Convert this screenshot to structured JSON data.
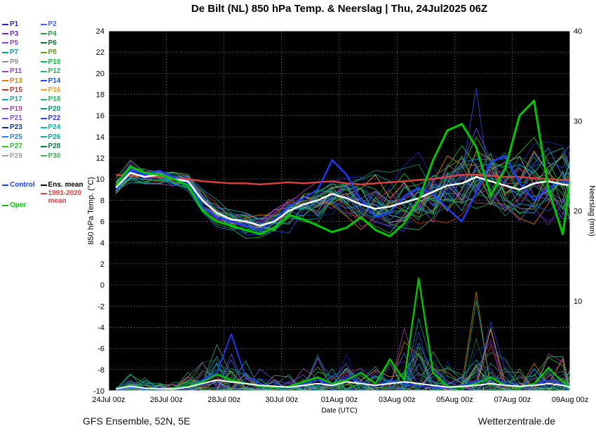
{
  "header": {
    "title": "De Bilt  (NL)  850 hPa Temp. & Neerslag | Thu, 24Jul2025 06Z"
  },
  "footer": {
    "left": "GFS Ensemble, 52N, 5E",
    "right": "Wetterzentrale.de"
  },
  "legend": {
    "control_label": "Control",
    "ens_mean_label": "Ens. mean",
    "climate_label": "1991-2020 mean",
    "oper_label": "Oper"
  },
  "chart_data": {
    "type": "line",
    "title": "De Bilt  (NL)  850 hPa Temp. & Neerslag | Thu, 24Jul2025 06Z",
    "xlabel": "Date (UTC)",
    "ylabel_left": "850 hPa Temp. (°C)",
    "ylabel_right": "Neerslag (mm)",
    "ylim_left": [
      -10,
      24
    ],
    "ytick_step_left": 2,
    "ylim_right": [
      0,
      40
    ],
    "yticks_right": [
      10,
      20,
      30,
      40
    ],
    "x_total_hours": 384,
    "xtick_hours": [
      0,
      48,
      96,
      144,
      192,
      240,
      288,
      336,
      384
    ],
    "xtick_labels": [
      "24Jul 00z",
      "26Jul 00z",
      "28Jul 00z",
      "30Jul 00z",
      "01Aug 00z",
      "03Aug 00z",
      "05Aug 00z",
      "07Aug 00z",
      "09Aug 00z"
    ],
    "x_hours": [
      6,
      18,
      30,
      42,
      54,
      66,
      78,
      90,
      102,
      114,
      126,
      138,
      150,
      162,
      174,
      186,
      198,
      210,
      222,
      234,
      246,
      258,
      270,
      282,
      294,
      306,
      318,
      330,
      342,
      354,
      366,
      378,
      384
    ],
    "colors": {
      "control": "#1a3cff",
      "ens_mean": "#ffffff",
      "climate": "#e04040",
      "oper": "#00c800",
      "grid": "#b4b4b4",
      "plot_bg": "#000000",
      "axis_text": "#000000"
    },
    "series": {
      "ens_mean_temp": [
        9.2,
        10.6,
        10.2,
        10.4,
        10.0,
        9.8,
        8.0,
        6.8,
        6.2,
        6.0,
        5.6,
        6.0,
        7.0,
        7.6,
        8.0,
        8.6,
        8.2,
        7.6,
        7.2,
        7.4,
        7.8,
        8.2,
        8.8,
        9.4,
        9.6,
        10.2,
        9.8,
        9.4,
        9.0,
        9.6,
        9.8,
        9.5,
        9.4
      ],
      "climate_mean_temp": [
        10.4,
        10.3,
        10.3,
        10.2,
        10.1,
        10.0,
        9.8,
        9.7,
        9.6,
        9.6,
        9.5,
        9.6,
        9.7,
        9.6,
        9.7,
        9.8,
        9.6,
        9.5,
        9.6,
        9.7,
        9.8,
        9.9,
        10.0,
        10.2,
        10.4,
        10.4,
        10.3,
        10.2,
        10.2,
        10.1,
        10.0,
        9.9,
        9.9
      ],
      "control_temp": [
        9.0,
        10.9,
        10.4,
        10.8,
        10.2,
        9.6,
        7.4,
        6.4,
        6.0,
        5.6,
        5.2,
        6.2,
        7.4,
        8.2,
        9.0,
        11.8,
        10.4,
        8.0,
        6.4,
        6.8,
        8.4,
        9.2,
        8.6,
        7.2,
        6.0,
        8.8,
        11.6,
        12.2,
        9.6,
        8.0,
        9.2,
        9.8,
        9.6
      ],
      "oper_temp": [
        9.4,
        11.2,
        10.6,
        10.4,
        10.0,
        9.4,
        7.0,
        6.0,
        5.6,
        5.2,
        4.8,
        5.4,
        6.6,
        6.2,
        5.6,
        5.0,
        5.4,
        6.4,
        5.2,
        4.6,
        5.8,
        8.0,
        11.8,
        14.6,
        15.2,
        13.0,
        8.4,
        11.0,
        16.0,
        17.4,
        9.0,
        4.8,
        9.8
      ],
      "envelope_min_temp": [
        8.2,
        9.2,
        9.0,
        9.0,
        8.8,
        8.2,
        6.0,
        5.0,
        4.4,
        4.0,
        3.8,
        4.0,
        4.0,
        4.2,
        4.0,
        4.2,
        3.6,
        3.4,
        3.2,
        3.4,
        3.2,
        3.4,
        3.0,
        3.2,
        3.0,
        3.2,
        3.4,
        3.0,
        3.2,
        3.0,
        2.6,
        2.2,
        2.4
      ],
      "envelope_max_temp": [
        10.4,
        12.2,
        11.8,
        11.6,
        11.4,
        11.2,
        10.0,
        8.8,
        8.0,
        7.8,
        7.6,
        8.0,
        9.0,
        10.2,
        11.0,
        12.0,
        12.4,
        12.6,
        13.0,
        13.6,
        14.0,
        14.6,
        15.0,
        15.6,
        16.2,
        18.6,
        17.0,
        16.4,
        17.2,
        17.6,
        16.6,
        16.0,
        15.8
      ],
      "ens_mean_precip": [
        0.2,
        0.5,
        0.3,
        0.2,
        0.2,
        0.4,
        0.8,
        1.2,
        1.0,
        0.8,
        0.6,
        0.5,
        0.4,
        0.6,
        0.8,
        0.6,
        1.0,
        0.8,
        0.6,
        0.8,
        1.0,
        0.8,
        0.6,
        0.4,
        0.5,
        0.6,
        0.8,
        0.6,
        0.5,
        0.6,
        0.8,
        0.6,
        0.4
      ],
      "control_precip": [
        0.1,
        0.4,
        0.2,
        0.1,
        0.2,
        0.5,
        1.2,
        2.0,
        6.3,
        1.5,
        0.8,
        0.4,
        0.3,
        0.8,
        1.2,
        0.6,
        1.5,
        1.0,
        0.5,
        1.2,
        0.8,
        0.5,
        0.4,
        0.3,
        0.6,
        1.0,
        1.5,
        0.8,
        0.4,
        0.6,
        1.2,
        0.8,
        0.3
      ],
      "oper_precip": [
        0.2,
        0.6,
        0.3,
        0.2,
        0.2,
        0.5,
        1.0,
        1.8,
        1.2,
        0.8,
        0.5,
        0.4,
        0.5,
        1.0,
        1.5,
        0.8,
        1.2,
        2.0,
        0.8,
        3.5,
        1.2,
        12.5,
        2.0,
        0.5,
        0.4,
        0.8,
        1.5,
        0.6,
        0.4,
        0.8,
        2.5,
        1.0,
        0.3
      ],
      "envelope_max_precip": [
        0.8,
        2.0,
        1.5,
        1.0,
        1.0,
        2.2,
        4.0,
        6.0,
        5.0,
        3.5,
        2.5,
        2.0,
        2.0,
        3.0,
        4.5,
        3.5,
        5.0,
        4.0,
        3.0,
        5.0,
        8.0,
        12.5,
        6.0,
        3.5,
        3.0,
        11.0,
        8.0,
        4.0,
        3.0,
        4.0,
        6.5,
        5.0,
        2.5
      ]
    },
    "members": [
      {
        "label": "P1",
        "color": "#2020c0"
      },
      {
        "label": "P2",
        "color": "#4060ff"
      },
      {
        "label": "P3",
        "color": "#8020c0"
      },
      {
        "label": "P4",
        "color": "#20a040"
      },
      {
        "label": "P5",
        "color": "#9040e0"
      },
      {
        "label": "P6",
        "color": "#107030"
      },
      {
        "label": "P7",
        "color": "#00a0a0"
      },
      {
        "label": "P8",
        "color": "#60a020"
      },
      {
        "label": "P9",
        "color": "#909090"
      },
      {
        "label": "P10",
        "color": "#00c840"
      },
      {
        "label": "P11",
        "color": "#a040c0"
      },
      {
        "label": "P12",
        "color": "#30b060"
      },
      {
        "label": "P13",
        "color": "#e08000"
      },
      {
        "label": "P14",
        "color": "#2050e0"
      },
      {
        "label": "P15",
        "color": "#d03020"
      },
      {
        "label": "P16",
        "color": "#f0a030"
      },
      {
        "label": "P17",
        "color": "#00b0b0"
      },
      {
        "label": "P18",
        "color": "#20c060"
      },
      {
        "label": "P19",
        "color": "#b040b0"
      },
      {
        "label": "P20",
        "color": "#009080"
      },
      {
        "label": "P21",
        "color": "#8050f0"
      },
      {
        "label": "P22",
        "color": "#3040f0"
      },
      {
        "label": "P23",
        "color": "#1030a0"
      },
      {
        "label": "P24",
        "color": "#00b8a8"
      },
      {
        "label": "P25",
        "color": "#2080f0"
      },
      {
        "label": "P26",
        "color": "#10a0a0"
      },
      {
        "label": "P27",
        "color": "#30c030"
      },
      {
        "label": "P28",
        "color": "#108040"
      },
      {
        "label": "P29",
        "color": "#a0a0a0"
      },
      {
        "label": "P30",
        "color": "#40b050"
      }
    ]
  }
}
